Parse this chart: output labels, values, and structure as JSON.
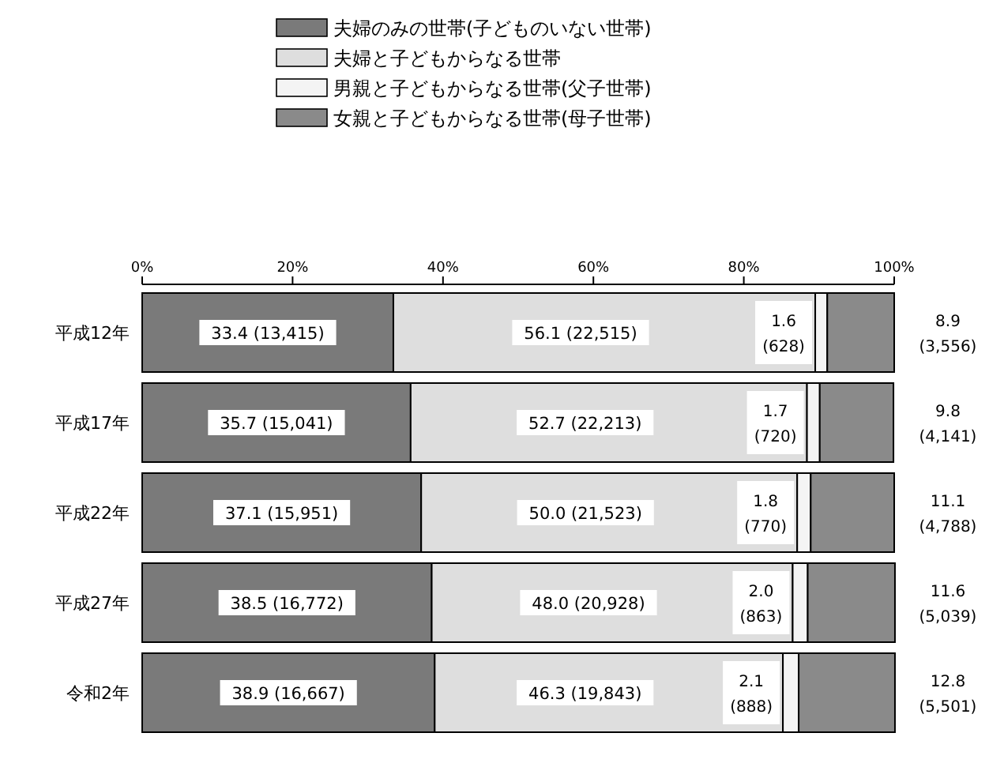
{
  "chart_data": {
    "type": "bar",
    "orientation": "horizontal",
    "stacked": true,
    "legend": "top",
    "categories": [
      "平成12年",
      "平成17年",
      "平成22年",
      "平成27年",
      "令和2年"
    ],
    "xlim": [
      0,
      100
    ],
    "xticks": [
      {
        "value": 0,
        "label": "0%"
      },
      {
        "value": 20,
        "label": "20%"
      },
      {
        "value": 40,
        "label": "40%"
      },
      {
        "value": 60,
        "label": "60%"
      },
      {
        "value": 80,
        "label": "80%"
      },
      {
        "value": 100,
        "label": "100%"
      }
    ],
    "series": [
      {
        "name": "夫婦のみの世帯(子どものいない世帯)",
        "color": "#7a7a7a",
        "values": [
          33.4,
          35.7,
          37.1,
          38.5,
          38.9
        ],
        "value_labels": [
          "33.4 (13,415)",
          "35.7 (15,041)",
          "37.1 (15,951)",
          "38.5 (16,772)",
          "38.9 (16,667)"
        ]
      },
      {
        "name": "夫婦と子どもからなる世帯",
        "color": "#dedede",
        "values": [
          56.1,
          52.7,
          50.0,
          48.0,
          46.3
        ],
        "value_labels": [
          "56.1 (22,515)",
          "52.7 (22,213)",
          "50.0 (21,523)",
          "48.0 (20,928)",
          "46.3 (19,843)"
        ]
      },
      {
        "name": "男親と子どもからなる世帯(父子世帯)",
        "color": "#f4f4f4",
        "values": [
          1.6,
          1.7,
          1.8,
          2.0,
          2.1
        ],
        "value_labels": [
          "1.6 (628)",
          "1.7 (720)",
          "1.8 (770)",
          "2.0 (863)",
          "2.1 (888)"
        ]
      },
      {
        "name": "女親と子どもからなる世帯(母子世帯)",
        "color": "#8a8a8a",
        "values": [
          8.9,
          9.8,
          11.1,
          11.6,
          12.8
        ],
        "value_labels": [
          "8.9 (3,556)",
          "9.8 (4,141)",
          "11.1 (4,788)",
          "11.6 (5,039)",
          "12.8 (5,501)"
        ]
      }
    ]
  }
}
